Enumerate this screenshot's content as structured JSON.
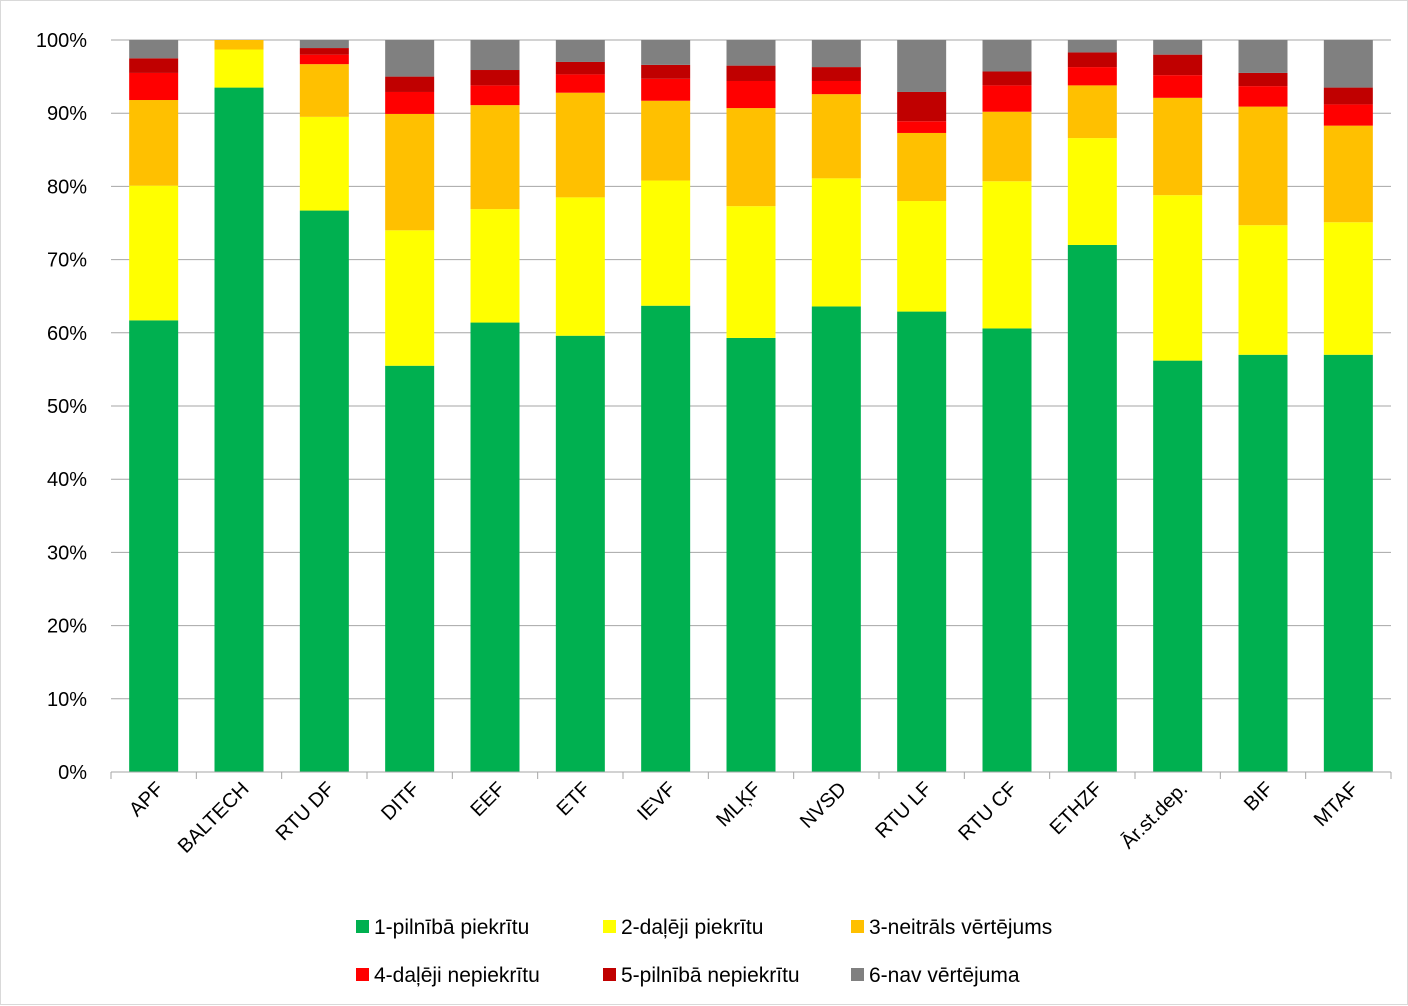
{
  "chart_data": {
    "type": "bar",
    "stacked": true,
    "percent": true,
    "categories": [
      "APF",
      "BALTECH",
      "RTU DF",
      "DITF",
      "EEF",
      "ETF",
      "IEVF",
      "MLĶF",
      "NVSD",
      "RTU  LF",
      "RTU  CF",
      "ETHZF",
      "Ār.st.dep.",
      "BIF",
      "MTAF"
    ],
    "series": [
      {
        "name": "1-pilnībā piekrītu",
        "color": "#00b050",
        "values": [
          61.7,
          93.5,
          76.7,
          55.5,
          61.4,
          59.6,
          63.7,
          59.3,
          63.6,
          62.9,
          60.6,
          72.0,
          56.2,
          57.0,
          57.0
        ]
      },
      {
        "name": "2-daļēji piekrītu",
        "color": "#ffff00",
        "values": [
          18.4,
          5.2,
          12.8,
          18.5,
          15.5,
          18.9,
          17.1,
          18.0,
          17.5,
          15.1,
          20.1,
          14.6,
          22.6,
          17.7,
          18.1
        ]
      },
      {
        "name": "3-neitrāls vērtējums",
        "color": "#ffc000",
        "values": [
          11.7,
          1.3,
          7.2,
          15.9,
          14.2,
          14.3,
          10.9,
          13.4,
          11.5,
          9.3,
          9.5,
          7.2,
          13.3,
          16.2,
          13.2
        ]
      },
      {
        "name": "4-daļēji nepiekrītu",
        "color": "#ff0000",
        "values": [
          3.7,
          0,
          1.3,
          3.0,
          2.7,
          2.5,
          3.0,
          3.7,
          1.8,
          1.6,
          3.6,
          2.5,
          3.1,
          2.8,
          2.9
        ]
      },
      {
        "name": "5-pilnībā nepiekrītu",
        "color": "#c00000",
        "values": [
          2.0,
          0,
          0.9,
          2.1,
          2.1,
          1.7,
          1.9,
          2.1,
          1.9,
          4.0,
          1.9,
          2.0,
          2.8,
          1.8,
          2.3
        ]
      },
      {
        "name": "6-nav vērtējuma",
        "color": "#808080",
        "values": [
          2.5,
          0,
          1.1,
          5.0,
          4.1,
          3.0,
          3.4,
          3.5,
          3.7,
          7.1,
          4.3,
          1.7,
          2.0,
          4.5,
          6.5
        ]
      }
    ],
    "y_ticks": [
      "0%",
      "10%",
      "20%",
      "30%",
      "40%",
      "50%",
      "60%",
      "70%",
      "80%",
      "90%",
      "100%"
    ],
    "ylim": [
      0,
      100
    ],
    "grid": true,
    "legend_position": "bottom",
    "title": "",
    "xlabel": "",
    "ylabel": ""
  }
}
